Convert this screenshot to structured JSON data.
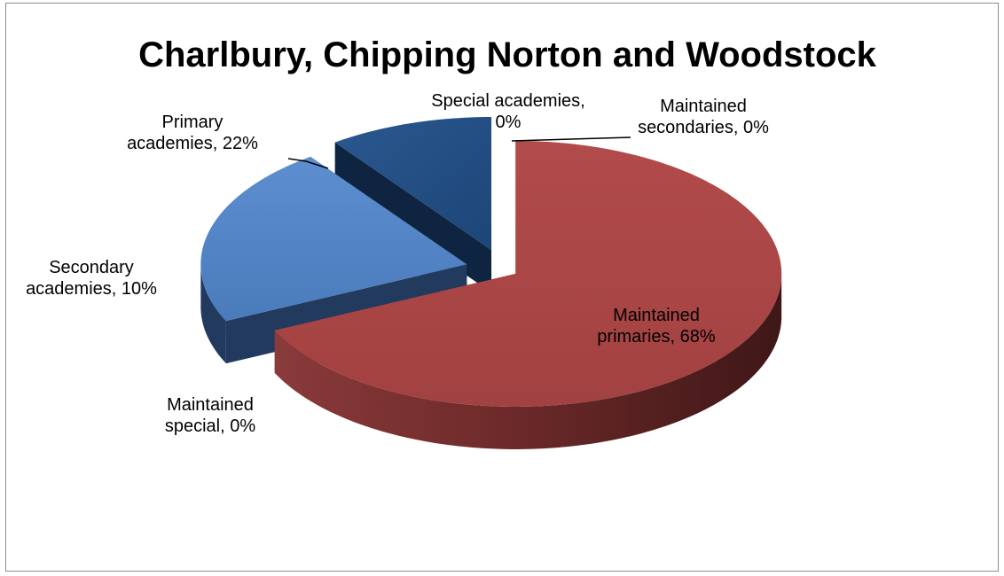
{
  "chart_data": {
    "type": "pie",
    "title": "Charlbury, Chipping Norton and Woodstock",
    "style": "3d-exploded",
    "slices": [
      {
        "name": "Maintained primaries",
        "value": 68,
        "color": "#a54343",
        "label_lines": [
          "Maintained",
          "primaries, 68%"
        ]
      },
      {
        "name": "Maintained secondaries",
        "value": 0,
        "color": "#6b8e23",
        "label_lines": [
          "Maintained",
          "secondaries, 0%"
        ]
      },
      {
        "name": "Special academies",
        "value": 0,
        "color": "#7a5fa0",
        "label_lines": [
          "Special academies,",
          "0%"
        ]
      },
      {
        "name": "Primary academies",
        "value": 22,
        "color": "#4f81bd",
        "label_lines": [
          "Primary",
          "academies, 22%"
        ]
      },
      {
        "name": "Secondary academies",
        "value": 10,
        "color": "#1f497d",
        "label_lines": [
          "Secondary",
          "academies, 10%"
        ]
      },
      {
        "name": "Maintained special",
        "value": 0,
        "color": "#2c4d75",
        "label_lines": [
          "Maintained",
          "special, 0%"
        ]
      }
    ]
  }
}
